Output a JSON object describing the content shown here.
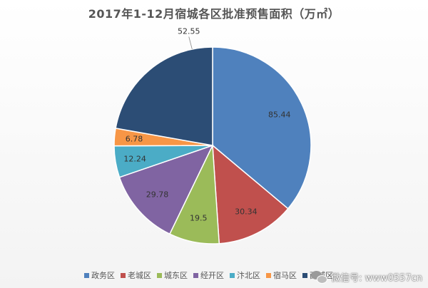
{
  "chart_data": {
    "type": "pie",
    "title": "2017年1-12月宿城各区批准预售面积（万㎡）",
    "legend_position": "bottom",
    "categories": [
      "政务区",
      "老城区",
      "城东区",
      "经开区",
      "汴北区",
      "宿马区",
      "西城区"
    ],
    "values": [
      85.44,
      30.34,
      19.5,
      29.78,
      12.24,
      6.78,
      52.55
    ],
    "colors": [
      "#4f81bd",
      "#c0504d",
      "#9bbb59",
      "#8064a2",
      "#4bacc6",
      "#f79646",
      "#2c4d75"
    ]
  },
  "watermark": {
    "text": "微信号: www0557cn"
  }
}
